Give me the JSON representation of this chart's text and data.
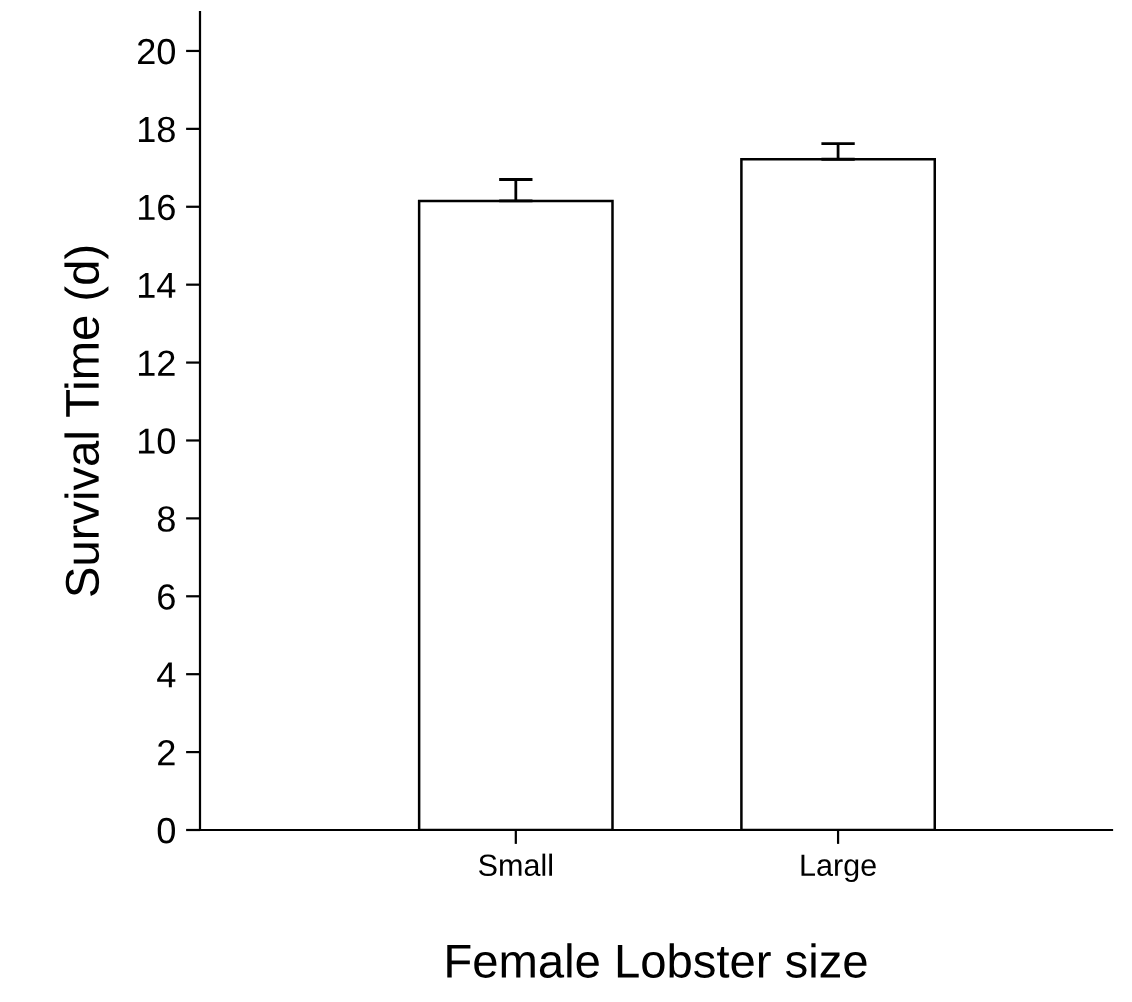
{
  "chart_data": {
    "type": "bar",
    "xlabel": "Female Lobster size",
    "ylabel": "Survival Time (d)",
    "categories": [
      "Small",
      "Large"
    ],
    "values": [
      16.15,
      17.22
    ],
    "errors": [
      [
        16.15,
        16.7
      ],
      [
        17.22,
        17.62
      ]
    ],
    "color": "#ffffff",
    "ylim": [
      0,
      21
    ],
    "yticks": [
      0,
      2,
      4,
      6,
      8,
      10,
      12,
      14,
      16,
      18,
      20
    ],
    "grid": false,
    "legend": false
  }
}
